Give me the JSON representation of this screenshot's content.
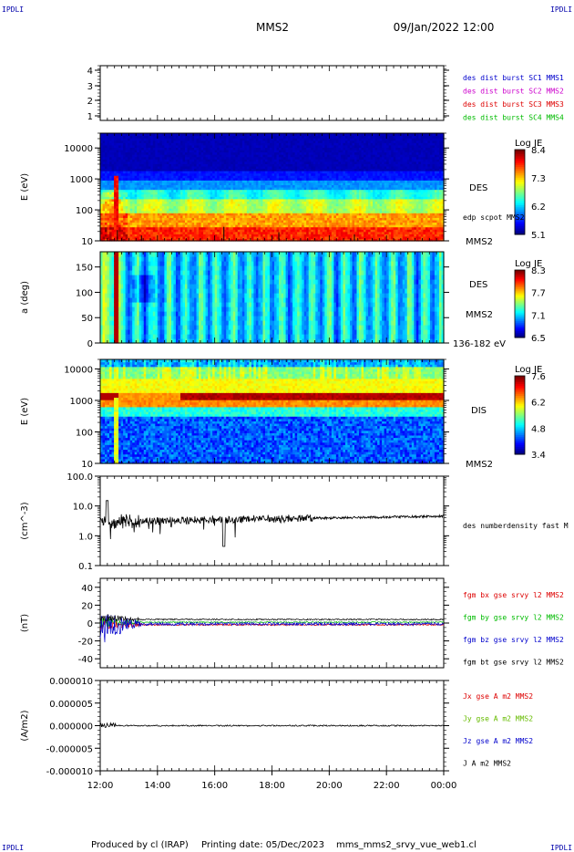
{
  "header": {
    "corner_tl": "IPDLI",
    "corner_tr": "IPDLI",
    "corner_bl": "IPDLI",
    "corner_br": "IPDLI",
    "spacecraft": "MMS2",
    "datetime": "09/Jan/2022 12:00"
  },
  "footer": {
    "produced": "Produced by cl (IRAP)",
    "printing": "Printing date: 05/Dec/2023",
    "file": "mms_mms2_srvy_vue_web1.cl"
  },
  "colors": {
    "mms1": "#0000cc",
    "mms2": "#cc00cc",
    "mms3": "#dd0000",
    "mms4": "#00bb00",
    "bx": "#dd0000",
    "by": "#00bb00",
    "bz": "#0000cc",
    "bt": "#000000"
  },
  "chart_data": [
    {
      "type": "line",
      "id": "burst",
      "yticks": [
        "4",
        "3",
        "2",
        "1"
      ],
      "ylim": [
        0.5,
        4.5
      ],
      "legend": [
        {
          "name": "des dist burst SC1 MMS1",
          "color": "#0000cc"
        },
        {
          "name": "des dist burst SC2 MMS2",
          "color": "#cc00cc"
        },
        {
          "name": "des dist burst SC3 MMS3",
          "color": "#dd0000"
        },
        {
          "name": "des dist burst SC4 MMS4",
          "color": "#00bb00"
        }
      ]
    },
    {
      "type": "heatmap",
      "id": "des-energy",
      "ylabel": "E (eV)",
      "scale": "log",
      "yticks": [
        "10000",
        "1000",
        "100",
        "10"
      ],
      "ylim": [
        10,
        30000
      ],
      "colorbar": {
        "title": "Log JE",
        "ticks": [
          "8.4",
          "7.3",
          "6.2",
          "5.1"
        ]
      },
      "right_labels": [
        "DES",
        "edp scpot MMS2",
        "MMS2"
      ]
    },
    {
      "type": "heatmap",
      "id": "des-pitch",
      "ylabel": "a (deg)",
      "yticks": [
        "150",
        "100",
        "50",
        "0"
      ],
      "ylim": [
        0,
        180
      ],
      "colorbar": {
        "title": "Log JE",
        "ticks": [
          "8.3",
          "7.7",
          "7.1",
          "6.5"
        ]
      },
      "right_labels": [
        "DES",
        "MMS2",
        "136-182 eV"
      ]
    },
    {
      "type": "heatmap",
      "id": "dis-energy",
      "ylabel": "E (eV)",
      "scale": "log",
      "yticks": [
        "10000",
        "1000",
        "100",
        "10"
      ],
      "ylim": [
        10,
        20000
      ],
      "colorbar": {
        "title": "Log JE",
        "ticks": [
          "7.6",
          "6.2",
          "4.8",
          "3.4"
        ]
      },
      "right_labels": [
        "DIS",
        "MMS2"
      ]
    },
    {
      "type": "line",
      "id": "density",
      "ylabel": "(cm^-3)",
      "scale": "log",
      "yticks": [
        "100.0",
        "10.0",
        "1.0",
        "0.1"
      ],
      "ylim": [
        0.1,
        100
      ],
      "legend": [
        {
          "name": "des numberdensity fast M",
          "color": "#000000"
        }
      ]
    },
    {
      "type": "line",
      "id": "bfield",
      "ylabel": "(nT)",
      "yticks": [
        "40",
        "20",
        "0",
        "-20",
        "-40"
      ],
      "ylim": [
        -50,
        50
      ],
      "legend": [
        {
          "name": "fgm bx gse srvy l2 MMS2",
          "color": "#dd0000"
        },
        {
          "name": "fgm by gse srvy l2 MMS2",
          "color": "#00bb00"
        },
        {
          "name": "fgm bz gse srvy l2 MMS2",
          "color": "#0000cc"
        },
        {
          "name": "fgm bt gse srvy l2 MMS2",
          "color": "#000000"
        }
      ]
    },
    {
      "type": "line",
      "id": "current",
      "ylabel": "(A/m2)",
      "yticks": [
        "0.000010",
        "0.000005",
        "0.000000",
        "-0.000005",
        "-0.000010"
      ],
      "ylim": [
        -1e-05,
        1e-05
      ],
      "legend": [
        {
          "name": "Jx gse A m2 MMS2",
          "color": "#dd0000"
        },
        {
          "name": "Jy gse A m2 MMS2",
          "color": "#66bb00"
        },
        {
          "name": "Jz gse A m2 MMS2",
          "color": "#0000cc"
        },
        {
          "name": "J A m2 MMS2",
          "color": "#000000"
        }
      ]
    }
  ],
  "xaxis": {
    "ticks": [
      "12:00",
      "14:00",
      "16:00",
      "18:00",
      "20:00",
      "22:00",
      "00:00"
    ],
    "range_hours": [
      12,
      24
    ]
  }
}
